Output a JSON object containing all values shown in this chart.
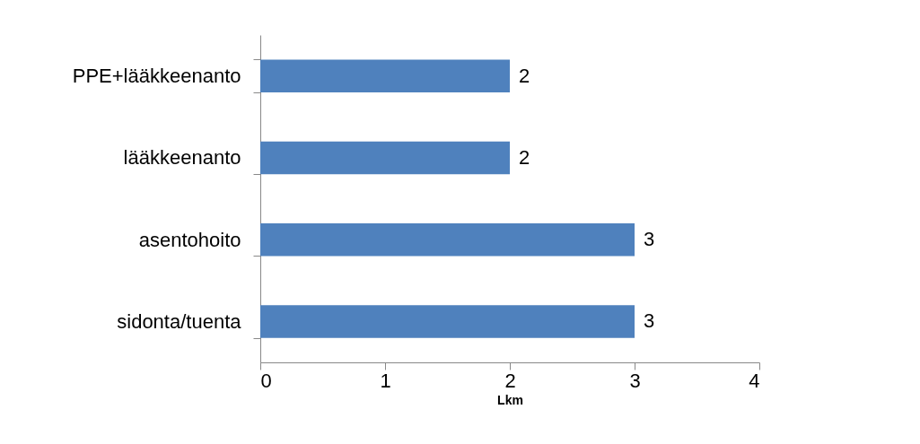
{
  "chart_data": {
    "type": "bar",
    "orientation": "horizontal",
    "xlabel": "Lkm",
    "categories": [
      "PPE+lääkkeenanto",
      "lääkkeenanto",
      "asentohoito",
      "sidonta/tuenta"
    ],
    "values": [
      2,
      2,
      3,
      3
    ],
    "color": "#4f81bd",
    "xlim": [
      0,
      4
    ],
    "xticks": [
      0,
      1,
      2,
      3,
      4
    ],
    "grid": false,
    "data_labels": true
  }
}
